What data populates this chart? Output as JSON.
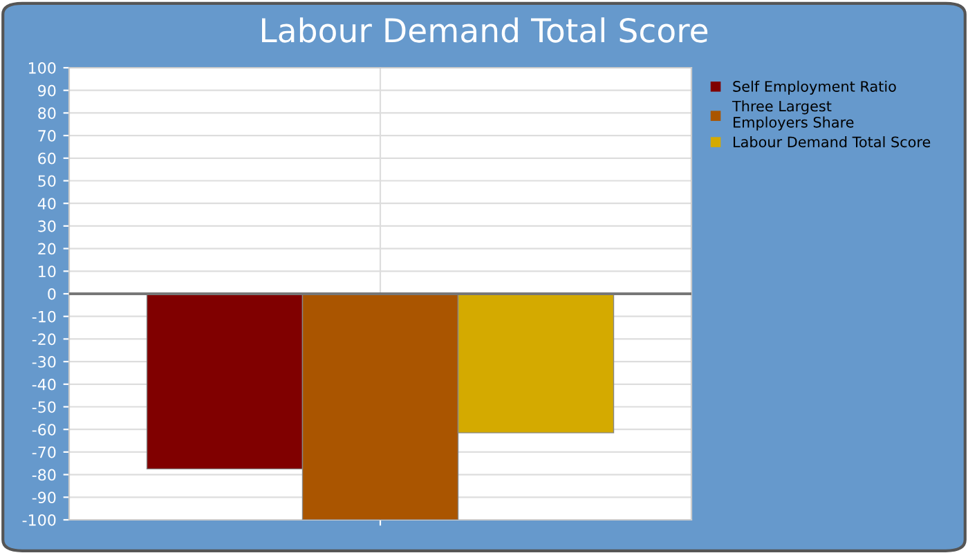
{
  "chart_data": {
    "type": "bar",
    "title": "Labour Demand Total Score",
    "categories": [
      null
    ],
    "series": [
      {
        "name": "Self Employment Ratio",
        "color": "#800000",
        "values": [
          -77.5
        ]
      },
      {
        "name": "Three Largest\nEmployers Share",
        "color": "#aa5500",
        "values": [
          -100
        ]
      },
      {
        "name": "Labour Demand Total Score",
        "color": "#d4aa00",
        "values": [
          -61.5
        ]
      }
    ],
    "ylim": [
      -100,
      100
    ],
    "yticks": [
      -100,
      -90,
      -80,
      -70,
      -60,
      -50,
      -40,
      -30,
      -20,
      -10,
      0,
      10,
      20,
      30,
      40,
      50,
      60,
      70,
      80,
      90,
      100
    ],
    "grid": true,
    "legend": "right"
  }
}
